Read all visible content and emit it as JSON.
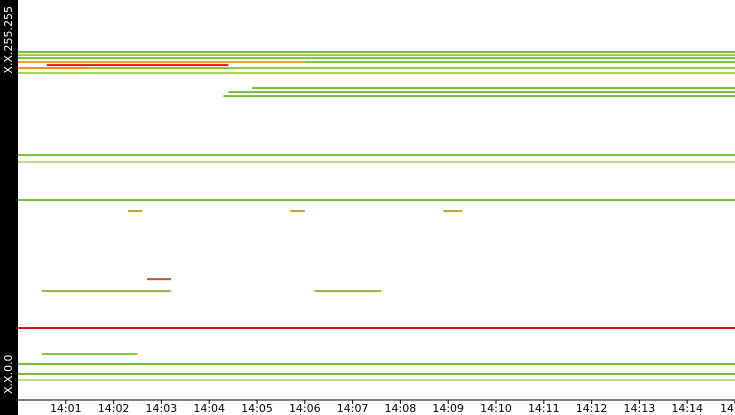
{
  "chart_data": {
    "type": "ip-timeline",
    "xlim": [
      0,
      15
    ],
    "ylim": [
      0,
      65535
    ],
    "xticks": [
      {
        "value": 1,
        "label": "14:01"
      },
      {
        "value": 2,
        "label": "14:02"
      },
      {
        "value": 3,
        "label": "14:03"
      },
      {
        "value": 4,
        "label": "14:04"
      },
      {
        "value": 5,
        "label": "14:05"
      },
      {
        "value": 6,
        "label": "14:06"
      },
      {
        "value": 7,
        "label": "14:07"
      },
      {
        "value": 8,
        "label": "14:08"
      },
      {
        "value": 9,
        "label": "14:09"
      },
      {
        "value": 10,
        "label": "14:10"
      },
      {
        "value": 11,
        "label": "14:11"
      },
      {
        "value": 12,
        "label": "14:12"
      },
      {
        "value": 13,
        "label": "14:13"
      },
      {
        "value": 14,
        "label": "14:14"
      },
      {
        "value": 15,
        "label": "14"
      }
    ],
    "yticks": [
      {
        "value": 65535,
        "label": "X.X.255.255"
      },
      {
        "value": 0,
        "label": "X.X.0.0"
      }
    ],
    "segments": [
      {
        "y": 57000,
        "x": [
          0,
          15
        ],
        "color": "#6fbf3a"
      },
      {
        "y": 56510,
        "x": [
          0,
          15
        ],
        "color": "#a8c83a"
      },
      {
        "y": 56020,
        "x": [
          0,
          15
        ],
        "color": "#7cc23c"
      },
      {
        "y": 55366,
        "x": [
          0,
          6
        ],
        "color": "#e8a020"
      },
      {
        "y": 55366,
        "x": [
          6,
          15
        ],
        "color": "#7cc23c"
      },
      {
        "y": 54873,
        "x": [
          0.6,
          4.4
        ],
        "color": "#e02010"
      },
      {
        "y": 54380,
        "x": [
          0,
          1.5
        ],
        "color": "#f08a18"
      },
      {
        "y": 54380,
        "x": [
          1.5,
          15
        ],
        "color": "#8cc43c"
      },
      {
        "y": 53560,
        "x": [
          0,
          15
        ],
        "color": "#9ccc50"
      },
      {
        "y": 51106,
        "x": [
          4.9,
          15
        ],
        "color": "#6fbf3a"
      },
      {
        "y": 50450,
        "x": [
          4.4,
          15
        ],
        "color": "#6fbf3a"
      },
      {
        "y": 49795,
        "x": [
          4.3,
          15
        ],
        "color": "#6fbf3a"
      },
      {
        "y": 40131,
        "x": [
          0,
          15
        ],
        "color": "#6fbf3a"
      },
      {
        "y": 38984,
        "x": [
          0,
          15
        ],
        "color": "#b6dc90"
      },
      {
        "y": 32760,
        "x": [
          0,
          15
        ],
        "color": "#6fbf3a"
      },
      {
        "y": 30960,
        "x": [
          2.3,
          2.6
        ],
        "color": "#c8a020"
      },
      {
        "y": 30960,
        "x": [
          5.7,
          6.0
        ],
        "color": "#c8a020"
      },
      {
        "y": 30960,
        "x": [
          8.9,
          9.3
        ],
        "color": "#c8a020"
      },
      {
        "y": 17850,
        "x": [
          0.5,
          3.2
        ],
        "color": "#8cb840"
      },
      {
        "y": 17850,
        "x": [
          6.2,
          7.6
        ],
        "color": "#8cb840"
      },
      {
        "y": 19800,
        "x": [
          2.7,
          3.2
        ],
        "color": "#c85020"
      },
      {
        "y": 11794,
        "x": [
          0,
          15
        ],
        "color": "#e01010"
      },
      {
        "y": 7530,
        "x": [
          0.5,
          2.5
        ],
        "color": "#8cc43c"
      },
      {
        "y": 5897,
        "x": [
          0,
          15
        ],
        "color": "#6fbf3a"
      },
      {
        "y": 4259,
        "x": [
          0,
          15
        ],
        "color": "#6fbf3a"
      },
      {
        "y": 3276,
        "x": [
          0,
          15
        ],
        "color": "#b6dc90"
      }
    ]
  }
}
